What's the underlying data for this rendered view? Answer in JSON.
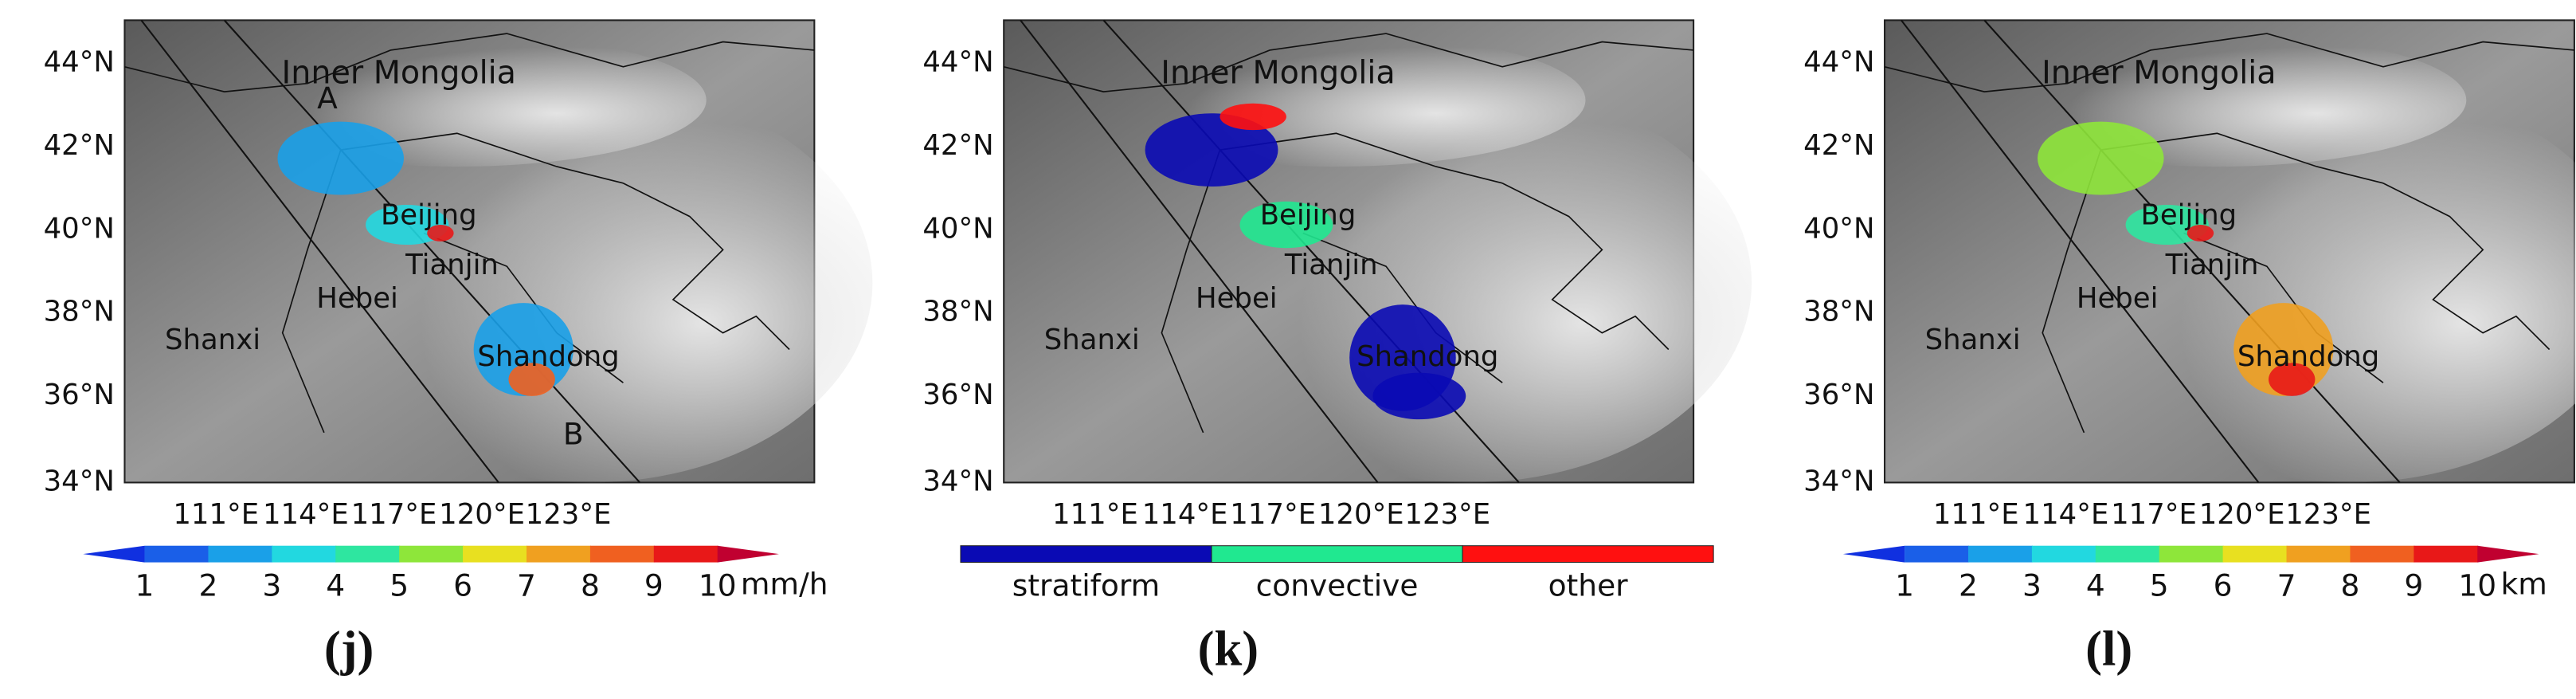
{
  "panels": [
    {
      "label": "(j)",
      "lat_labels": [
        "44°N",
        "42°N",
        "40°N",
        "38°N",
        "36°N",
        "34°N"
      ],
      "lon_labels": [
        "111°E",
        "114°E",
        "117°E",
        "120°E",
        "123°E"
      ],
      "places": [
        "Inner Mongolia",
        "Beijing",
        "Tianjin",
        "Hebei",
        "Shanxi",
        "Shandong"
      ],
      "markers": [
        "A",
        "B"
      ],
      "colorbar": {
        "kind": "continuous",
        "ticks": [
          1,
          2,
          3,
          4,
          5,
          6,
          7,
          8,
          9,
          10
        ],
        "unit": "mm/h",
        "colors": [
          "#1030e0",
          "#1a5fe8",
          "#1aa0e8",
          "#22d8e0",
          "#2ee6a0",
          "#8ee63a",
          "#e8e020",
          "#f0a020",
          "#f06020",
          "#e81818",
          "#c00030"
        ]
      }
    },
    {
      "label": "(k)",
      "lat_labels": [
        "44°N",
        "42°N",
        "40°N",
        "38°N",
        "36°N",
        "34°N"
      ],
      "lon_labels": [
        "111°E",
        "114°E",
        "117°E",
        "120°E",
        "123°E"
      ],
      "places": [
        "Inner Mongolia",
        "Beijing",
        "Tianjin",
        "Hebei",
        "Shanxi",
        "Shandong"
      ],
      "markers": [],
      "colorbar": {
        "kind": "categorical",
        "categories": [
          "stratiform",
          "convective",
          "other"
        ],
        "colors": [
          "#0a0ab4",
          "#20e890",
          "#ff1010"
        ]
      }
    },
    {
      "label": "(l)",
      "lat_labels": [
        "44°N",
        "42°N",
        "40°N",
        "38°N",
        "36°N",
        "34°N"
      ],
      "lon_labels": [
        "111°E",
        "114°E",
        "117°E",
        "120°E",
        "123°E"
      ],
      "places": [
        "Inner Mongolia",
        "Beijing",
        "Tianjin",
        "Hebei",
        "Shanxi",
        "Shandong"
      ],
      "markers": [],
      "colorbar": {
        "kind": "continuous",
        "ticks": [
          1,
          2,
          3,
          4,
          5,
          6,
          7,
          8,
          9,
          10
        ],
        "unit": "km",
        "colors": [
          "#1030e0",
          "#1a5fe8",
          "#1aa0e8",
          "#22d8e0",
          "#2ee6a0",
          "#8ee63a",
          "#e8e020",
          "#f0a020",
          "#f06020",
          "#e81818",
          "#c00030"
        ]
      }
    }
  ]
}
